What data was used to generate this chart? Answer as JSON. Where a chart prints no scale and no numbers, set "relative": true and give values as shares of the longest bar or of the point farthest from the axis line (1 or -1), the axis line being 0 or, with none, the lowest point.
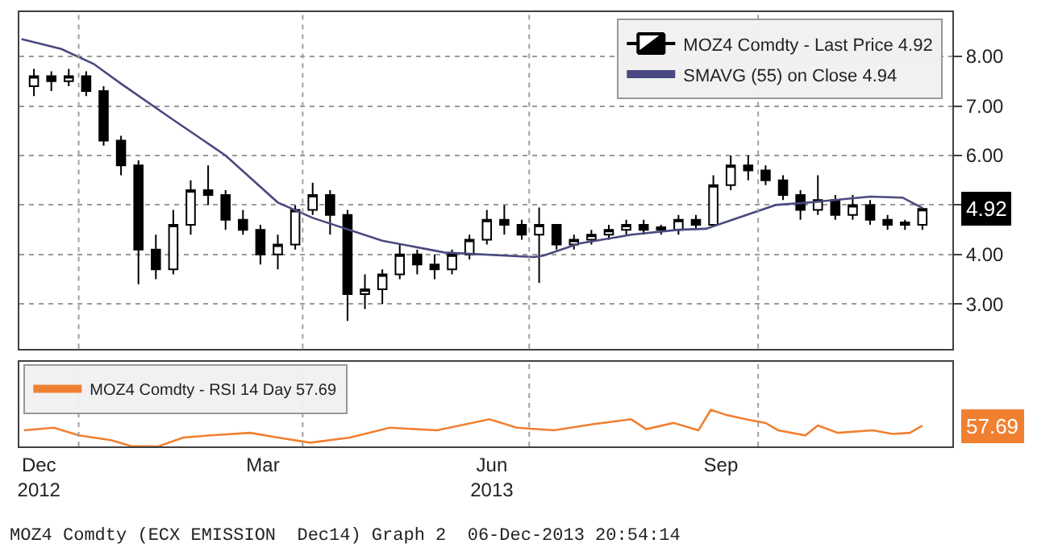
{
  "chart_data": [
    {
      "type": "candlestick",
      "ylim": [
        2.1,
        8.9
      ],
      "yticks": [
        {
          "value": 3,
          "label": "3.00"
        },
        {
          "value": 4,
          "label": "4.00"
        },
        {
          "value": 5,
          "label": null
        },
        {
          "value": 6,
          "label": "6.00"
        },
        {
          "value": 7,
          "label": "7.00"
        },
        {
          "value": 8,
          "label": "8.00"
        }
      ],
      "xlim": [
        "2012-12-08",
        "2013-12-18"
      ],
      "tick_labels": "y",
      "grid": "y",
      "legend": "top right",
      "ref_lines": [
        {
          "axis": "x",
          "value": "2013-01-01",
          "line_style": "dotted",
          "color": "#a0a0a0"
        },
        {
          "axis": "x",
          "value": "2013-04-01",
          "line_style": "dotted",
          "color": "#a0a0a0"
        },
        {
          "axis": "x",
          "value": "2013-07-01",
          "line_style": "dotted",
          "color": "#a0a0a0"
        },
        {
          "axis": "x",
          "value": "2013-10-01",
          "line_style": "dotted",
          "color": "#a0a0a0"
        }
      ],
      "annotations": [
        "4.92"
      ],
      "series": [
        {
          "name": "MOZ4 Comdty - Last Price 4.92",
          "type": "candlestick",
          "color": "#000000",
          "x": [
            "2012-12-14",
            "2012-12-21",
            "2012-12-28",
            "2013-01-04",
            "2013-01-11",
            "2013-01-18",
            "2013-01-25",
            "2013-02-01",
            "2013-02-08",
            "2013-02-15",
            "2013-02-22",
            "2013-03-01",
            "2013-03-08",
            "2013-03-15",
            "2013-03-22",
            "2013-03-29",
            "2013-04-05",
            "2013-04-12",
            "2013-04-19",
            "2013-04-26",
            "2013-05-03",
            "2013-05-10",
            "2013-05-17",
            "2013-05-24",
            "2013-05-31",
            "2013-06-07",
            "2013-06-14",
            "2013-06-21",
            "2013-06-28",
            "2013-07-05",
            "2013-07-12",
            "2013-07-19",
            "2013-07-26",
            "2013-08-02",
            "2013-08-09",
            "2013-08-16",
            "2013-08-23",
            "2013-08-30",
            "2013-09-06",
            "2013-09-13",
            "2013-09-20",
            "2013-09-27",
            "2013-10-04",
            "2013-10-11",
            "2013-10-18",
            "2013-10-25",
            "2013-11-01",
            "2013-11-08",
            "2013-11-15",
            "2013-11-22",
            "2013-11-29",
            "2013-12-06"
          ],
          "ohlc": [
            [
              7.4,
              7.75,
              7.2,
              7.6
            ],
            [
              7.6,
              7.7,
              7.3,
              7.5
            ],
            [
              7.5,
              7.75,
              7.4,
              7.6
            ],
            [
              7.6,
              7.7,
              7.2,
              7.3
            ],
            [
              7.3,
              7.4,
              6.2,
              6.3
            ],
            [
              6.3,
              6.4,
              5.6,
              5.8
            ],
            [
              5.8,
              5.9,
              3.4,
              4.1
            ],
            [
              4.1,
              4.4,
              3.5,
              3.7
            ],
            [
              3.7,
              4.9,
              3.6,
              4.6
            ],
            [
              4.6,
              5.5,
              4.4,
              5.3
            ],
            [
              5.3,
              5.8,
              5.0,
              5.2
            ],
            [
              5.2,
              5.3,
              4.5,
              4.7
            ],
            [
              4.7,
              4.9,
              4.4,
              4.5
            ],
            [
              4.5,
              4.6,
              3.8,
              4.0
            ],
            [
              4.0,
              4.4,
              3.7,
              4.2
            ],
            [
              4.2,
              5.0,
              4.1,
              4.9
            ],
            [
              4.9,
              5.45,
              4.8,
              5.2
            ],
            [
              5.2,
              5.3,
              4.4,
              4.8
            ],
            [
              4.8,
              4.9,
              2.66,
              3.2
            ],
            [
              3.2,
              3.6,
              2.9,
              3.3
            ],
            [
              3.3,
              3.7,
              3.0,
              3.6
            ],
            [
              3.6,
              4.2,
              3.5,
              4.0
            ],
            [
              4.0,
              4.1,
              3.6,
              3.8
            ],
            [
              3.8,
              4.0,
              3.5,
              3.7
            ],
            [
              3.7,
              4.1,
              3.6,
              4.0
            ],
            [
              4.0,
              4.4,
              3.9,
              4.3
            ],
            [
              4.3,
              4.9,
              4.2,
              4.7
            ],
            [
              4.7,
              5.0,
              4.4,
              4.6
            ],
            [
              4.6,
              4.7,
              4.3,
              4.4
            ],
            [
              4.4,
              4.95,
              3.43,
              4.6
            ],
            [
              4.6,
              4.6,
              4.1,
              4.2
            ],
            [
              4.2,
              4.4,
              4.1,
              4.3
            ],
            [
              4.3,
              4.5,
              4.2,
              4.4
            ],
            [
              4.4,
              4.6,
              4.3,
              4.5
            ],
            [
              4.5,
              4.7,
              4.4,
              4.6
            ],
            [
              4.6,
              4.7,
              4.4,
              4.5
            ],
            [
              4.5,
              4.6,
              4.4,
              4.55
            ],
            [
              4.5,
              4.8,
              4.4,
              4.7
            ],
            [
              4.7,
              4.8,
              4.5,
              4.6
            ],
            [
              4.6,
              5.6,
              4.6,
              5.4
            ],
            [
              5.4,
              6.0,
              5.3,
              5.8
            ],
            [
              5.8,
              6.0,
              5.5,
              5.7
            ],
            [
              5.7,
              5.8,
              5.4,
              5.5
            ],
            [
              5.5,
              5.6,
              5.1,
              5.2
            ],
            [
              5.2,
              5.3,
              4.7,
              4.9
            ],
            [
              4.9,
              5.6,
              4.8,
              5.1
            ],
            [
              5.1,
              5.2,
              4.7,
              4.8
            ],
            [
              4.8,
              5.2,
              4.7,
              5.0
            ],
            [
              5.0,
              5.1,
              4.6,
              4.7
            ],
            [
              4.7,
              4.8,
              4.5,
              4.6
            ],
            [
              4.6,
              4.7,
              4.5,
              4.65
            ],
            [
              4.6,
              4.95,
              4.5,
              4.92
            ]
          ]
        },
        {
          "name": "SMAVG (55) on Close 4.94",
          "type": "line",
          "color": "#4a4a80",
          "x": [
            "2012-12-09",
            "2012-12-25",
            "2013-01-07",
            "2013-01-18",
            "2013-02-08",
            "2013-03-01",
            "2013-03-22",
            "2013-04-05",
            "2013-05-03",
            "2013-05-28",
            "2013-07-03",
            "2013-07-07",
            "2013-07-21",
            "2013-08-11",
            "2013-08-30",
            "2013-09-10",
            "2013-10-08",
            "2013-10-21",
            "2013-11-15",
            "2013-11-28",
            "2013-12-06"
          ],
          "values": [
            8.35,
            8.15,
            7.85,
            7.45,
            6.72,
            6.0,
            5.05,
            4.74,
            4.28,
            4.04,
            3.95,
            3.98,
            4.22,
            4.4,
            4.5,
            4.52,
            5.0,
            5.05,
            5.17,
            5.15,
            4.94
          ]
        }
      ]
    },
    {
      "type": "line",
      "relative": true,
      "xlim": [
        "2012-12-08",
        "2013-12-18"
      ],
      "xticks": [
        {
          "value": "2012-12-16",
          "label": "Dec\n2012"
        },
        {
          "value": "2013-03-16",
          "label": "Mar"
        },
        {
          "value": "2013-06-16",
          "label": "Jun\n2013"
        },
        {
          "value": "2013-09-16",
          "label": "Sep"
        }
      ],
      "tick_labels": "x",
      "legend": "top left",
      "ref_lines": [
        {
          "axis": "x",
          "value": "2013-01-01",
          "line_style": "dotted",
          "color": "#a0a0a0"
        },
        {
          "axis": "x",
          "value": "2013-04-01",
          "line_style": "dotted",
          "color": "#a0a0a0"
        },
        {
          "axis": "x",
          "value": "2013-07-01",
          "line_style": "dotted",
          "color": "#a0a0a0"
        },
        {
          "axis": "x",
          "value": "2013-10-01",
          "line_style": "dotted",
          "color": "#a0a0a0"
        }
      ],
      "annotations": [
        "57.69",
        "MOZ4 Comdty (ECX EMISSION  Dec14) Graph 2  06-Dec-2013 20:54:14"
      ],
      "series": [
        {
          "name": "MOZ4 Comdty - RSI 14 Day 57.69",
          "color": "#f08030",
          "x": [
            "2012-12-10",
            "2012-12-22",
            "2013-01-01",
            "2013-01-14",
            "2013-01-22",
            "2013-02-02",
            "2013-02-12",
            "2013-02-23",
            "2013-03-11",
            "2013-03-22",
            "2013-04-04",
            "2013-04-20",
            "2013-05-06",
            "2013-05-25",
            "2013-06-15",
            "2013-06-26",
            "2013-07-11",
            "2013-07-27",
            "2013-08-11",
            "2013-08-17",
            "2013-08-28",
            "2013-09-07",
            "2013-09-12",
            "2013-09-18",
            "2013-09-26",
            "2013-10-04",
            "2013-10-09",
            "2013-10-20",
            "2013-10-25",
            "2013-11-02",
            "2013-11-16",
            "2013-11-24",
            "2013-12-01",
            "2013-12-06"
          ],
          "values": [
            0.44,
            0.51,
            0.3,
            0.17,
            0.01,
            0,
            0.24,
            0.3,
            0.37,
            0.24,
            0.1,
            0.24,
            0.51,
            0.44,
            0.74,
            0.51,
            0.44,
            0.61,
            0.74,
            0.47,
            0.64,
            0.44,
            1,
            0.86,
            0.74,
            0.64,
            0.44,
            0.3,
            0.57,
            0.37,
            0.44,
            0.34,
            0.37,
            0.57
          ]
        }
      ]
    }
  ]
}
